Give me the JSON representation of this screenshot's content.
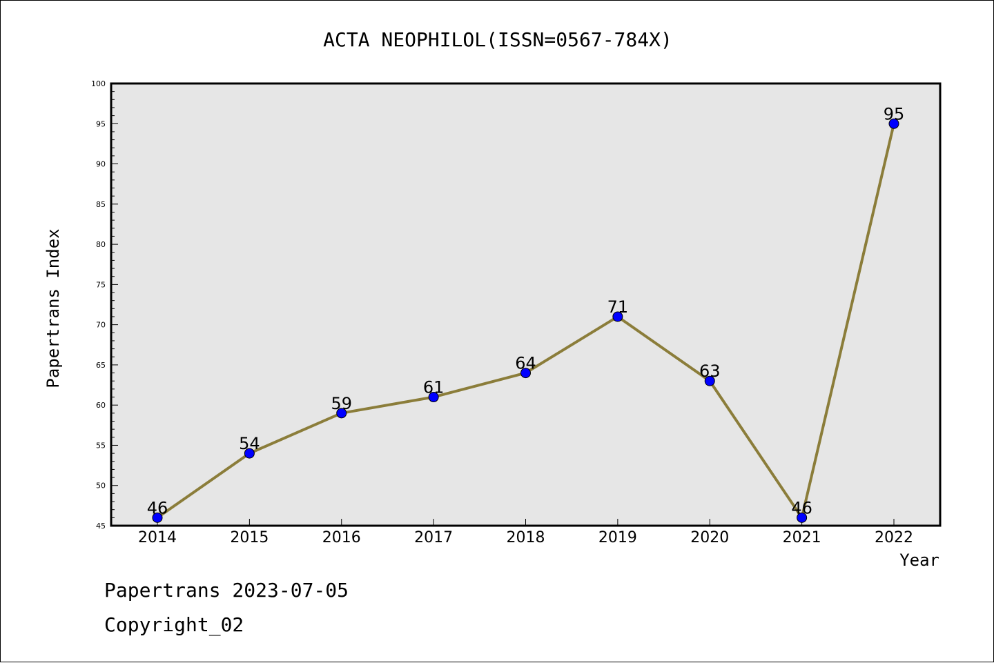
{
  "chart_data": {
    "type": "line",
    "title": "ACTA NEOPHILOL(ISSN=0567-784X)",
    "xlabel": "Year",
    "ylabel": "Papertrans Index",
    "categories": [
      "2014",
      "2015",
      "2016",
      "2017",
      "2018",
      "2019",
      "2020",
      "2021",
      "2022"
    ],
    "series": [
      {
        "values": [
          46,
          54,
          59,
          61,
          64,
          71,
          63,
          46,
          95
        ]
      }
    ],
    "ylim": [
      45,
      100
    ],
    "yticks": [
      45,
      50,
      55,
      60,
      65,
      70,
      75,
      80,
      85,
      90,
      95,
      100
    ],
    "grid": false,
    "data_labels": true,
    "colors": {
      "line": "#8B7D3A",
      "marker": "#0000FF",
      "plot_bg": "#E6E6E6"
    }
  },
  "footer": {
    "line1": "Papertrans 2023-07-05",
    "line2": "Copyright_02"
  }
}
